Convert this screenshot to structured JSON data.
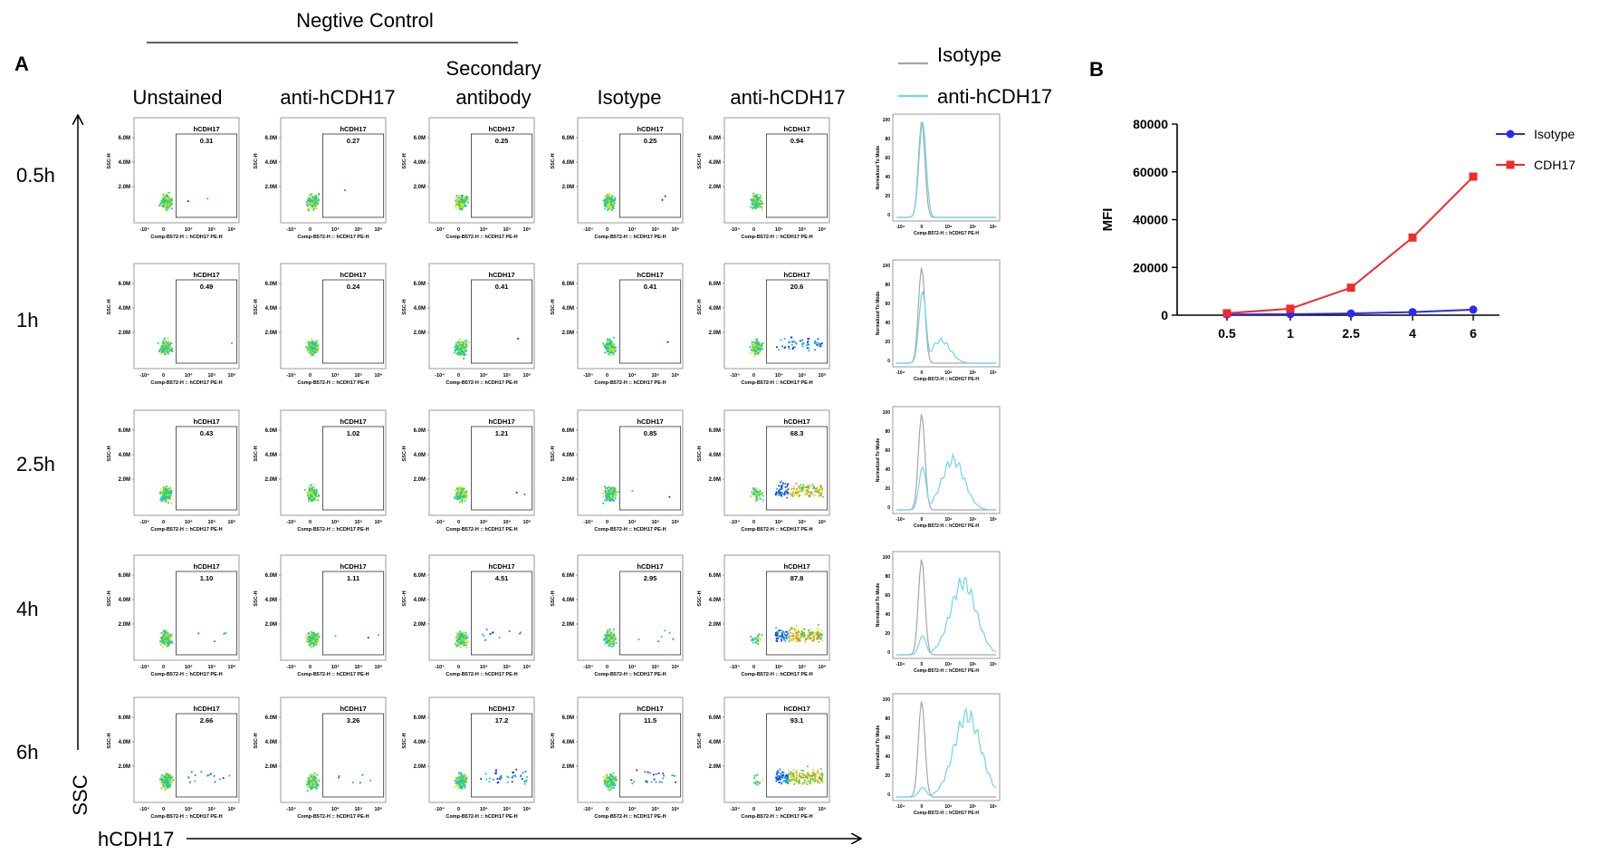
{
  "panel_a": {
    "label": "A",
    "group_title": "Negtive Control",
    "columns": [
      "Unstained",
      "anti-hCDH17",
      "Secondary antibody",
      "Isotype",
      "anti-hCDH17"
    ],
    "rows": [
      "0.5h",
      "1h",
      "2.5h",
      "4h",
      "6h"
    ],
    "y_axis_title": "SSC",
    "x_axis_title": "hCDH17",
    "gate_label": "hCDH17",
    "scatter_y_ticks": [
      "6.0M",
      "4.0M",
      "2.0M"
    ],
    "scatter_y_label": "SSC-H",
    "scatter_x_ticks": [
      "-10⁴",
      "0",
      "10⁴",
      "10⁵",
      "10⁶"
    ],
    "scatter_x_label": "Comp-B572-H :: hCDH17 PE-H",
    "hist_y_ticks": [
      "100",
      "80",
      "60",
      "40",
      "20",
      "0"
    ],
    "hist_y_label": "Normalized To Mode",
    "hist_x_label": "Comp-B572-H :: hCDH17 PE-H",
    "gate_percentages": [
      [
        "0.31",
        "0.27",
        "0.25",
        "0.25",
        "0.94"
      ],
      [
        "0.49",
        "0.24",
        "0.41",
        "0.41",
        "20.6"
      ],
      [
        "0.43",
        "1.02",
        "1.21",
        "0.85",
        "68.3"
      ],
      [
        "1.10",
        "1.11",
        "4.51",
        "2.95",
        "87.8"
      ],
      [
        "2.66",
        "3.26",
        "17.2",
        "11.5",
        "93.1"
      ]
    ],
    "legend": [
      {
        "name": "Isotype",
        "color": "#a6a6a6"
      },
      {
        "name": "anti-hCDH17",
        "color": "#6fd3ee"
      }
    ]
  },
  "panel_b": {
    "label": "B",
    "chart_data": {
      "type": "line",
      "title": "",
      "xlabel": "",
      "ylabel": "MFI",
      "categories": [
        "0.5",
        "1",
        "2.5",
        "4",
        "6"
      ],
      "ylim": [
        0,
        80000
      ],
      "yticks": [
        "0",
        "20000",
        "40000",
        "60000",
        "80000"
      ],
      "legend_position": "top-right",
      "series": [
        {
          "name": "Isotype",
          "color": "#2b2bef",
          "marker": "circle",
          "values": [
            300,
            400,
            700,
            1300,
            2300
          ]
        },
        {
          "name": "CDH17",
          "color": "#ef2b2b",
          "marker": "square",
          "values": [
            800,
            2700,
            11500,
            32500,
            58000
          ]
        }
      ]
    }
  }
}
